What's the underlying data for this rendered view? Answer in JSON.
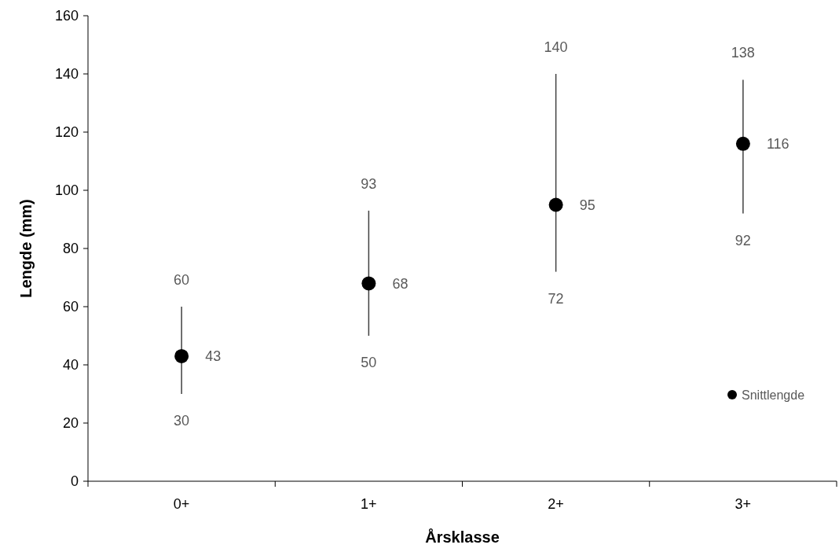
{
  "chart_data": {
    "type": "scatter",
    "xlabel": "Årsklasse",
    "ylabel": "Lengde (mm)",
    "categories": [
      "0+",
      "1+",
      "2+",
      "3+"
    ],
    "series": [
      {
        "name": "Snittlengde",
        "color": "#000000",
        "values": [
          43,
          68,
          95,
          116
        ],
        "errors": [
          [
            30,
            60
          ],
          [
            50,
            93
          ],
          [
            72,
            140
          ],
          [
            92,
            138
          ]
        ]
      }
    ],
    "data_labels": true,
    "annotations": [
      {
        "text": "60",
        "x": "0+",
        "y": 60
      },
      {
        "text": "30",
        "x": "0+",
        "y": 30
      },
      {
        "text": "93",
        "x": "1+",
        "y": 93
      },
      {
        "text": "50",
        "x": "1+",
        "y": 50
      },
      {
        "text": "140",
        "x": "2+",
        "y": 140
      },
      {
        "text": "72",
        "x": "2+",
        "y": 72
      },
      {
        "text": "138",
        "x": "3+",
        "y": 138
      },
      {
        "text": "92",
        "x": "3+",
        "y": 92
      }
    ],
    "ylim": [
      0,
      160
    ],
    "yticks": [
      0,
      20,
      40,
      60,
      80,
      100,
      120,
      140,
      160
    ],
    "grid": false,
    "legend": "bottom right",
    "marker": "circle"
  }
}
